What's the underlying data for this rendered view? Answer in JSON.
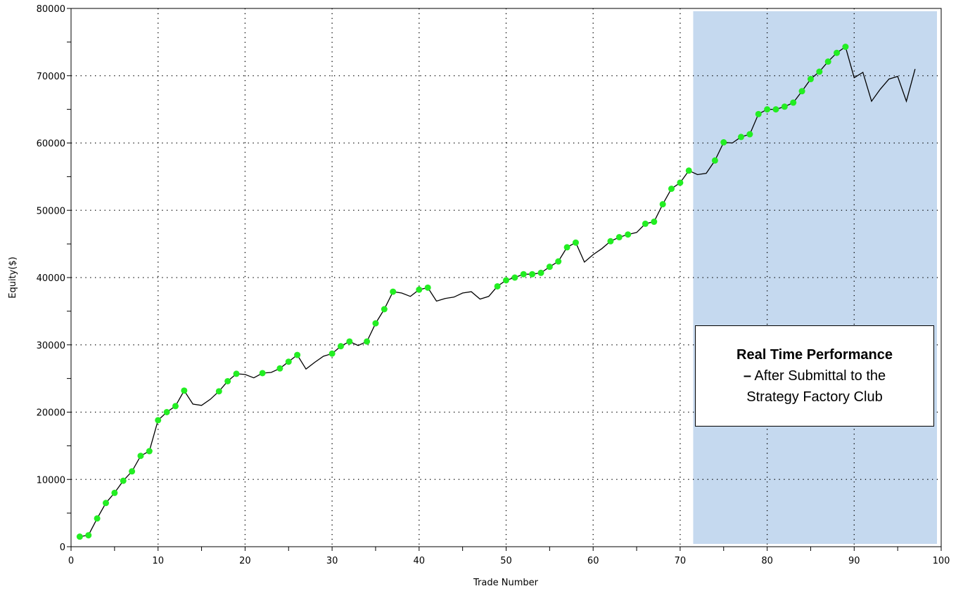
{
  "chart_data": {
    "type": "line",
    "title": "",
    "xlabel": "Trade Number",
    "ylabel": "Equity($)",
    "xlim": [
      0,
      100
    ],
    "ylim": [
      0,
      80000
    ],
    "x_ticks": [
      0,
      10,
      20,
      30,
      40,
      50,
      60,
      70,
      80,
      90,
      100
    ],
    "y_ticks": [
      0,
      10000,
      20000,
      30000,
      40000,
      50000,
      60000,
      70000,
      80000
    ],
    "grid": true,
    "grid_style": "dotted",
    "line_color": "#000000",
    "marker_color": "#22ee22",
    "highlight_region": {
      "x_start": 71.5,
      "x_end": 100,
      "color": "#c5d9ef"
    },
    "series": [
      {
        "x": [
          1,
          2,
          3,
          4,
          5,
          6,
          7,
          8,
          9,
          10,
          11,
          12,
          13,
          14,
          15,
          16,
          17,
          18,
          19,
          20,
          21,
          22,
          23,
          24,
          25,
          26,
          27,
          28,
          29,
          30,
          31,
          32,
          33,
          34,
          35,
          36,
          37,
          38,
          39,
          40,
          41,
          42,
          43,
          44,
          45,
          46,
          47,
          48,
          49,
          50,
          51,
          52,
          53,
          54,
          55,
          56,
          57,
          58,
          59,
          60,
          61,
          62,
          63,
          64,
          65,
          66,
          67,
          68,
          69,
          70,
          71,
          72,
          73,
          74,
          75,
          76,
          77,
          78,
          79,
          80,
          81,
          82,
          83,
          84,
          85,
          86,
          87,
          88,
          89,
          90,
          91,
          92,
          93,
          94,
          95,
          96,
          97
        ],
        "values": [
          1500,
          1700,
          4200,
          6500,
          8000,
          9800,
          11200,
          13500,
          14200,
          18800,
          20000,
          20900,
          23200,
          21200,
          21000,
          21900,
          23100,
          24600,
          25700,
          25600,
          25100,
          25800,
          25900,
          26500,
          27500,
          28500,
          26400,
          27400,
          28300,
          28700,
          29800,
          30500,
          29900,
          30500,
          33200,
          35300,
          37900,
          37700,
          37200,
          38200,
          38500,
          36500,
          36900,
          37100,
          37700,
          37900,
          36800,
          37200,
          38700,
          39600,
          40000,
          40500,
          40500,
          40700,
          41600,
          42400,
          44500,
          45200,
          42300,
          43400,
          44300,
          45400,
          46000,
          46400,
          46700,
          48000,
          48300,
          50900,
          53200,
          54100,
          55900,
          55300,
          55500,
          57400,
          60100,
          60000,
          60900,
          61300,
          64300,
          65000,
          65000,
          65400,
          66000,
          67700,
          69500,
          70600,
          72100,
          73400,
          74300,
          69700,
          70500,
          66200,
          68000,
          69500,
          69900,
          66200,
          71000
        ],
        "markers": [
          1,
          2,
          3,
          4,
          5,
          6,
          7,
          8,
          9,
          10,
          11,
          12,
          13,
          17,
          18,
          19,
          22,
          24,
          25,
          26,
          30,
          31,
          32,
          34,
          35,
          36,
          37,
          40,
          41,
          49,
          50,
          51,
          52,
          53,
          54,
          55,
          56,
          57,
          58,
          62,
          63,
          64,
          66,
          67,
          68,
          69,
          70,
          71,
          74,
          75,
          77,
          78,
          79,
          80,
          81,
          82,
          83,
          84,
          85,
          86,
          87,
          88,
          89
        ]
      }
    ],
    "annotation": {
      "bold_text": "Real Time Performance",
      "line1": "– After Submittal to the",
      "line2": "Strategy Factory Club"
    }
  }
}
